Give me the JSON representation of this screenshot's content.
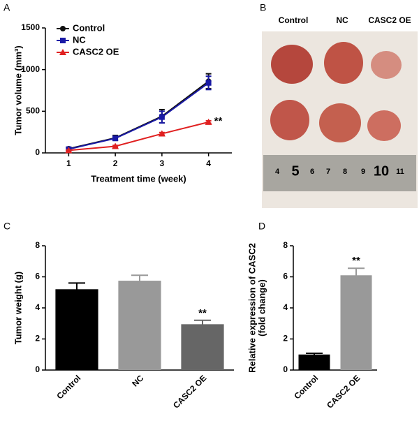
{
  "chart_data": [
    {
      "type": "line",
      "panel": "A",
      "x": [
        1,
        2,
        3,
        4
      ],
      "xlim": [
        0.5,
        4.5
      ],
      "xticks": [
        1,
        2,
        3,
        4
      ],
      "ylim": [
        0,
        1500
      ],
      "yticks": [
        0,
        500,
        1000,
        1500
      ],
      "xlabel": "Treatment time (week)",
      "ylabel": [
        "Tumor volume (mm³)"
      ],
      "series": [
        {
          "name": "Control",
          "color": "#111111",
          "marker": "circle",
          "values": [
            50,
            180,
            440,
            860
          ],
          "errors": [
            15,
            30,
            80,
            90
          ],
          "annotations": [
            null,
            null,
            null,
            null
          ]
        },
        {
          "name": "NC",
          "color": "#1a1aa6",
          "marker": "square",
          "values": [
            45,
            175,
            430,
            840
          ],
          "errors": [
            15,
            25,
            70,
            80
          ],
          "annotations": [
            null,
            null,
            null,
            null
          ]
        },
        {
          "name": "CASC2 OE",
          "color": "#e02020",
          "marker": "triangle",
          "values": [
            30,
            80,
            230,
            370
          ],
          "errors": [
            5,
            10,
            15,
            15
          ],
          "annotations": [
            null,
            null,
            null,
            "**"
          ]
        }
      ]
    },
    {
      "type": "bar",
      "panel": "C",
      "categories": [
        "Control",
        "NC",
        "CASC2 OE"
      ],
      "values": [
        5.2,
        5.75,
        2.95
      ],
      "errors": [
        0.4,
        0.35,
        0.25
      ],
      "annotations": [
        null,
        null,
        "**"
      ],
      "colors": [
        "#000000",
        "#999999",
        "#666666"
      ],
      "ylim": [
        0,
        8
      ],
      "yticks": [
        0,
        2,
        4,
        6,
        8
      ],
      "ylabel": [
        "Tumor weight (g)"
      ]
    },
    {
      "type": "bar",
      "panel": "D",
      "categories": [
        "Control",
        "CASC2 OE"
      ],
      "values": [
        1.0,
        6.1
      ],
      "errors": [
        0.08,
        0.45
      ],
      "annotations": [
        null,
        "**"
      ],
      "colors": [
        "#000000",
        "#999999"
      ],
      "ylim": [
        0,
        8
      ],
      "yticks": [
        0,
        2,
        4,
        6,
        8
      ],
      "ylabel": [
        "Relative expression of  CASC2",
        "(fold change)"
      ]
    }
  ],
  "photo": {
    "panel": "B",
    "columns": [
      "Control",
      "NC",
      "CASC2 OE"
    ],
    "ruler": [
      "4",
      "5",
      "6",
      "7",
      "8",
      "9",
      "10",
      "11"
    ]
  }
}
